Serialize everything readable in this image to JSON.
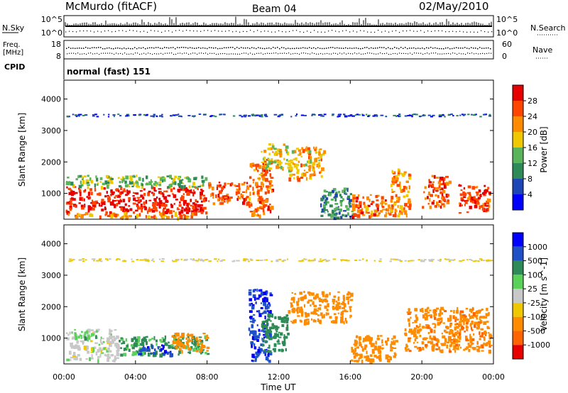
{
  "header": {
    "station": "McMurdo (fitACF)",
    "beam": "Beam 04",
    "date": "02/May/2010"
  },
  "sky_panel": {
    "left_label": "N.Sky",
    "right_label": "N.Search",
    "left_ticks": [
      "10^5",
      "10^0"
    ],
    "right_ticks": [
      "10^5",
      "10^0"
    ]
  },
  "freq_panel": {
    "left_label_1": "Freq.",
    "left_label_2": "[MHz]",
    "right_label": "Nave",
    "left_ticks": [
      "18",
      "8"
    ],
    "right_ticks": [
      "60",
      "0"
    ]
  },
  "cpid": {
    "label": "CPID",
    "value": "normal (fast) 151"
  },
  "colors": {
    "power_scale": [
      "#0000ff",
      "#1e46b4",
      "#2e8b57",
      "#5ab45a",
      "#f0c800",
      "#ff8c00",
      "#ff4500",
      "#e60000"
    ],
    "velocity_scale": [
      "#0000ff",
      "#2050c8",
      "#2e8b57",
      "#5ad25a",
      "#c8c8c8",
      "#f0c800",
      "#ff8c00",
      "#ff6400",
      "#e60000"
    ]
  },
  "chart_data": [
    {
      "type": "heatmap",
      "name": "power",
      "ylabel": "Slant Range [km]",
      "xlim": [
        0,
        24
      ],
      "ylim": [
        180,
        4600
      ],
      "y_ticks": [
        1000,
        2000,
        3000,
        4000
      ],
      "y_tick_labels": [
        "1000",
        "2000",
        "3000",
        "4000"
      ],
      "colorbar_label": "Power [dB]",
      "colorbar_ticks": [
        "4",
        "8",
        "12",
        "16",
        "20",
        "24",
        "28"
      ],
      "colorbar_range": [
        0,
        32
      ],
      "regions": [
        {
          "t0": 0.1,
          "t1": 7.9,
          "r0": 420,
          "r1": 1230,
          "value": 29
        },
        {
          "t0": 0.1,
          "t1": 7.9,
          "r0": 1230,
          "r1": 1600,
          "value": 14
        },
        {
          "t0": 0.2,
          "t1": 7.9,
          "r0": 250,
          "r1": 420,
          "value": 22
        },
        {
          "t0": 8.0,
          "t1": 10.3,
          "r0": 700,
          "r1": 1400,
          "value": 26
        },
        {
          "t0": 10.3,
          "t1": 11.6,
          "r0": 300,
          "r1": 2100,
          "value": 24
        },
        {
          "t0": 11.0,
          "t1": 12.5,
          "r0": 1800,
          "r1": 2600,
          "value": 18
        },
        {
          "t0": 12.5,
          "t1": 14.5,
          "r0": 1500,
          "r1": 2500,
          "value": 20
        },
        {
          "t0": 14.3,
          "t1": 16.2,
          "r0": 250,
          "r1": 1200,
          "value": 10
        },
        {
          "t0": 16.0,
          "t1": 18.2,
          "r0": 300,
          "r1": 1000,
          "value": 24
        },
        {
          "t0": 18.2,
          "t1": 19.3,
          "r0": 300,
          "r1": 1800,
          "value": 22
        },
        {
          "t0": 20.0,
          "t1": 21.5,
          "r0": 600,
          "r1": 1600,
          "value": 26
        },
        {
          "t0": 22.0,
          "t1": 23.8,
          "r0": 400,
          "r1": 1300,
          "value": 27
        },
        {
          "t0": 0.1,
          "t1": 23.8,
          "r0": 3460,
          "r1": 3540,
          "value": 6
        }
      ]
    },
    {
      "type": "heatmap",
      "name": "velocity",
      "ylabel": "Slant Range [km]",
      "xlabel": "Time UT",
      "xlim": [
        0,
        24
      ],
      "ylim": [
        180,
        4600
      ],
      "x_ticks": [
        0,
        4,
        8,
        12,
        16,
        20,
        24
      ],
      "x_tick_labels": [
        "00:00",
        "04:00",
        "08:00",
        "12:00",
        "16:00",
        "20:00",
        "00:00"
      ],
      "y_ticks": [
        1000,
        2000,
        3000,
        4000
      ],
      "y_tick_labels": [
        "1000",
        "2000",
        "3000",
        "4000"
      ],
      "colorbar_label": "Velocity [m s^-1]",
      "colorbar_ticks": [
        "1000",
        "500",
        "100",
        "25",
        "-25",
        "-100",
        "-500",
        "-1000"
      ],
      "regions": [
        {
          "t0": 0.1,
          "t1": 3.0,
          "r0": 300,
          "r1": 1300,
          "value": 0
        },
        {
          "t0": 0.5,
          "t1": 1.8,
          "r0": 1000,
          "r1": 1300,
          "value": 80
        },
        {
          "t0": 3.0,
          "t1": 8.0,
          "r0": 500,
          "r1": 1100,
          "value": 120
        },
        {
          "t0": 4.0,
          "t1": 6.0,
          "r0": 500,
          "r1": 800,
          "value": 800
        },
        {
          "t0": 6.0,
          "t1": 8.0,
          "r0": 600,
          "r1": 1200,
          "value": -250
        },
        {
          "t0": 10.3,
          "t1": 11.5,
          "r0": 300,
          "r1": 2600,
          "value": 900
        },
        {
          "t0": 11.0,
          "t1": 12.5,
          "r0": 600,
          "r1": 1800,
          "value": 300
        },
        {
          "t0": 12.5,
          "t1": 16.0,
          "r0": 1500,
          "r1": 2500,
          "value": -250
        },
        {
          "t0": 16.0,
          "t1": 18.5,
          "r0": 300,
          "r1": 1100,
          "value": -300
        },
        {
          "t0": 19.0,
          "t1": 23.8,
          "r0": 600,
          "r1": 2000,
          "value": -400
        },
        {
          "t0": 0.1,
          "t1": 23.8,
          "r0": 3460,
          "r1": 3540,
          "value": -30
        }
      ]
    }
  ]
}
